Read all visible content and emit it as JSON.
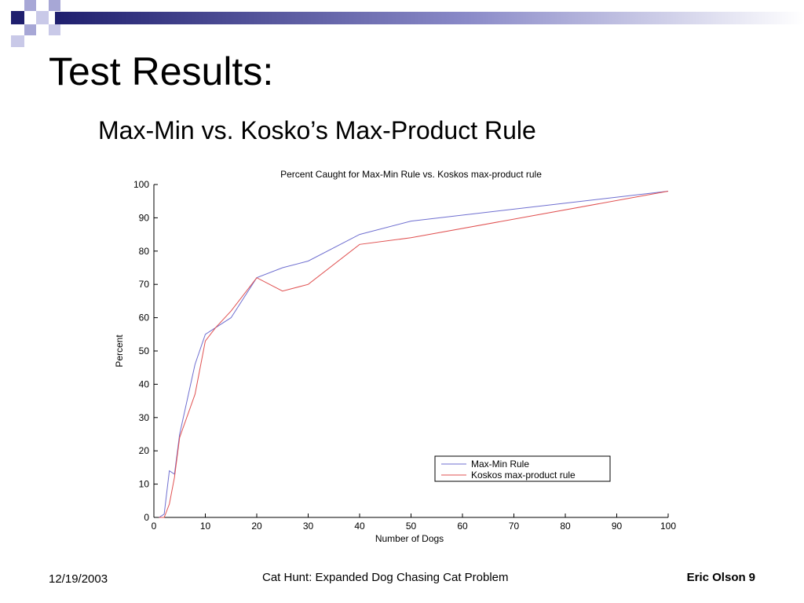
{
  "slide": {
    "title": "Test Results:",
    "subtitle": "Max-Min vs. Kosko’s Max-Product Rule"
  },
  "footer": {
    "date": "12/19/2003",
    "center": "Cat Hunt: Expanded Dog Chasing Cat Problem",
    "author": "Eric Olson",
    "page": "9"
  },
  "colors": {
    "decor_dark": "#1f1f6e",
    "decor_light": "#a7a7d6",
    "series_max_min": "#6f6fd0",
    "series_kosko": "#e05050"
  },
  "chart_data": {
    "type": "line",
    "title": "Percent Caught for Max-Min Rule vs. Koskos max-product rule",
    "xlabel": "Number of Dogs",
    "ylabel": "Percent",
    "xlim": [
      0,
      100
    ],
    "ylim": [
      0,
      100
    ],
    "xticks": [
      0,
      10,
      20,
      30,
      40,
      50,
      60,
      70,
      80,
      90,
      100
    ],
    "yticks": [
      0,
      10,
      20,
      30,
      40,
      50,
      60,
      70,
      80,
      90,
      100
    ],
    "grid": false,
    "legend_position": "bottom-right",
    "series": [
      {
        "name": "Max-Min Rule",
        "x": [
          1,
          2,
          3,
          4,
          5,
          8,
          10,
          12,
          15,
          20,
          25,
          30,
          40,
          50,
          100
        ],
        "y": [
          0,
          1,
          14,
          13,
          25,
          46,
          55,
          57,
          60,
          72,
          75,
          77,
          85,
          89,
          98
        ]
      },
      {
        "name": "Koskos max-product rule",
        "x": [
          1,
          2,
          3,
          4,
          5,
          8,
          10,
          12,
          15,
          20,
          25,
          30,
          40,
          50,
          100
        ],
        "y": [
          0,
          0,
          4,
          12,
          24,
          37,
          53,
          57,
          62,
          72,
          68,
          70,
          82,
          84,
          98
        ]
      }
    ]
  }
}
